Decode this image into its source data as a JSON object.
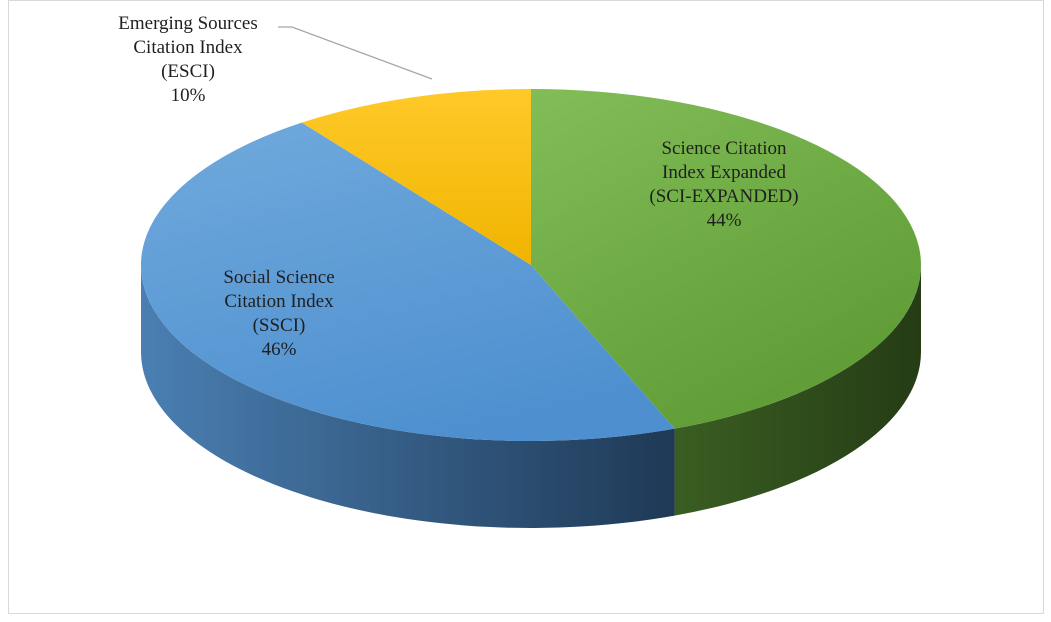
{
  "chart_data": {
    "type": "pie",
    "style": "3d",
    "title": "",
    "slices": [
      {
        "label": [
          "Science Citation",
          "Index Expanded",
          "(SCI-EXPANDED)"
        ],
        "value": 44,
        "display": "44%",
        "color": "#70ad47"
      },
      {
        "label": [
          "Social Science",
          "Citation Index",
          "(SSCI)"
        ],
        "value": 46,
        "display": "46%",
        "color": "#5b9bd5"
      },
      {
        "label": [
          "Emerging Sources",
          "Citation Index",
          "(ESCI)"
        ],
        "value": 10,
        "display": "10%",
        "color": "#ffc000"
      }
    ]
  }
}
